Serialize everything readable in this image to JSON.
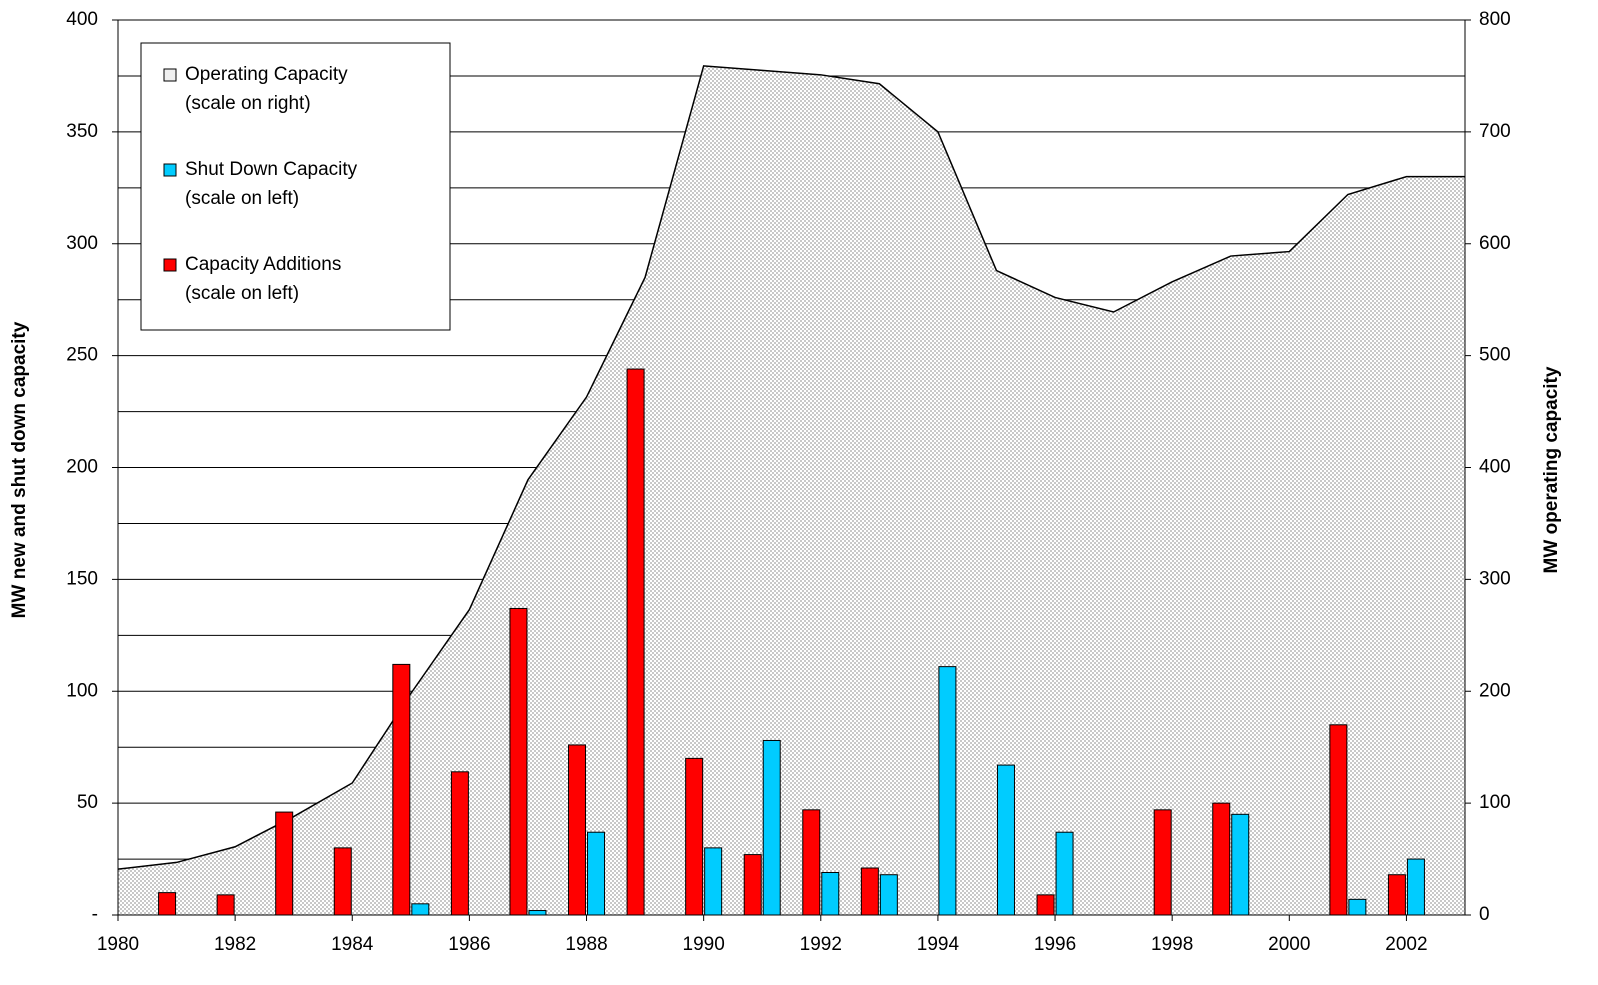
{
  "chart_data": {
    "type": "bar-area",
    "x": [
      1980,
      1981,
      1982,
      1983,
      1984,
      1985,
      1986,
      1987,
      1988,
      1989,
      1990,
      1991,
      1992,
      1993,
      1994,
      1995,
      1996,
      1997,
      1998,
      1999,
      2000,
      2001,
      2002,
      2003
    ],
    "series": [
      {
        "name": "Operating Capacity",
        "scale_note": "(scale on right)",
        "kind": "area",
        "axis": "y2",
        "color": "#d9d9d9",
        "values": [
          41,
          47,
          61,
          88,
          118,
          198,
          273,
          389,
          463,
          570,
          759,
          755,
          751,
          743,
          700,
          576,
          552,
          539,
          566,
          589,
          593,
          644,
          660,
          660
        ]
      },
      {
        "name": "Shut Down Capacity",
        "scale_note": "(scale on left)",
        "kind": "bar",
        "color": "#00ccff",
        "values": [
          null,
          null,
          null,
          null,
          null,
          5,
          null,
          2,
          37,
          null,
          30,
          78,
          19,
          18,
          111,
          67,
          37,
          null,
          null,
          45,
          null,
          7,
          25,
          null
        ]
      },
      {
        "name": "Capacity Additions",
        "scale_note": "(scale on left)",
        "kind": "bar",
        "color": "#ff0000",
        "values": [
          null,
          10,
          9,
          46,
          30,
          112,
          64,
          137,
          76,
          244,
          70,
          27,
          47,
          21,
          null,
          null,
          9,
          null,
          47,
          50,
          null,
          85,
          18,
          null
        ]
      }
    ],
    "y_label": "MW new and shut down capacity",
    "y2_label": "MW operating capacity",
    "xlim": [
      1980,
      2003
    ],
    "xticks": [
      1980,
      1982,
      1984,
      1986,
      1988,
      1990,
      1992,
      1994,
      1996,
      1998,
      2000,
      2002
    ],
    "ylim": [
      0,
      400
    ],
    "yticks": [
      {
        "value": 0,
        "label": "-"
      },
      50,
      100,
      150,
      200,
      250,
      300,
      350,
      400
    ],
    "y_minor_ticks": [
      25,
      75,
      125,
      175,
      225,
      275,
      325,
      375
    ],
    "y2lim": [
      0,
      800
    ],
    "y2ticks": [
      0,
      100,
      200,
      300,
      400,
      500,
      600,
      700,
      800
    ],
    "grid": true,
    "legend": "upper left"
  }
}
